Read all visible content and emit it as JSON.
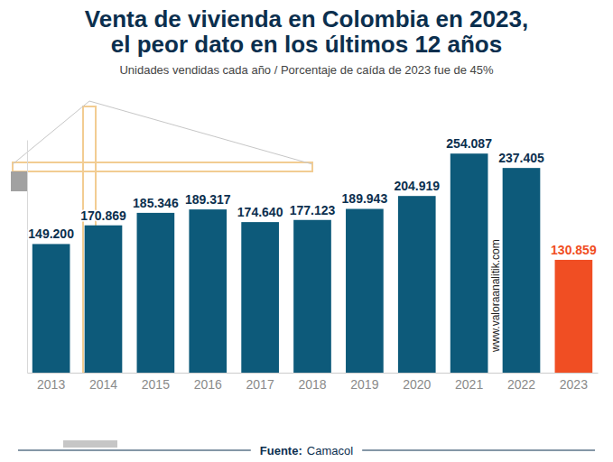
{
  "chart_data": {
    "type": "bar",
    "title": [
      "Venta de vivienda en Colombia en 2023,",
      "el peor dato en los últimos 12 años"
    ],
    "subtitle": "Unidades vendidas cada año / Porcentaje de caída de 2023 fue de 45%",
    "categories": [
      "2013",
      "2014",
      "2015",
      "2016",
      "2017",
      "2018",
      "2019",
      "2020",
      "2021",
      "2022",
      "2023"
    ],
    "values": [
      149200,
      170869,
      185346,
      189317,
      174640,
      177123,
      189943,
      204919,
      254087,
      237405,
      130859
    ],
    "value_labels": [
      "149.200",
      "170.869",
      "185.346",
      "189.317",
      "174.640",
      "177.123",
      "189.943",
      "204.919",
      "254.087",
      "237.405",
      "130.859"
    ],
    "colors": [
      "#0d5a7a",
      "#0d5a7a",
      "#0d5a7a",
      "#0d5a7a",
      "#0d5a7a",
      "#0d5a7a",
      "#0d5a7a",
      "#0d5a7a",
      "#0d5a7a",
      "#0d5a7a",
      "#f04e23"
    ],
    "ylim": [
      0,
      270000
    ],
    "data_labels": true,
    "tick_labels": "x",
    "grid": false,
    "watermark": "www.valoraanalitik.com",
    "source_label": "Fuente:",
    "source": "Camacol"
  }
}
